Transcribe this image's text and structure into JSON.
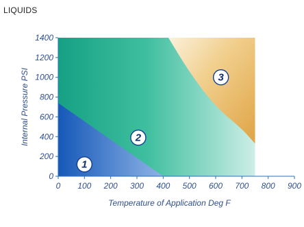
{
  "chart_data": {
    "type": "area",
    "title": "LIQUIDS",
    "xlabel": "Temperature of Application Deg F",
    "ylabel": "Internal Pressure PSI",
    "xlim": [
      0,
      900
    ],
    "ylim": [
      0,
      1400
    ],
    "x_ticks": [
      "0",
      "100",
      "200",
      "300",
      "400",
      "500",
      "600",
      "700",
      "800",
      "900"
    ],
    "y_ticks": [
      "0",
      "200",
      "400",
      "600",
      "800",
      "1000",
      "1200",
      "1400"
    ],
    "plot_xmax": 750,
    "regions": [
      {
        "label": "1",
        "boundary": [
          [
            0,
            740
          ],
          [
            400,
            0
          ]
        ],
        "label_at": [
          100,
          120
        ]
      },
      {
        "label": "2",
        "label_at": [
          305,
          390
        ]
      },
      {
        "label": "3",
        "boundary": [
          [
            420,
            1400
          ],
          [
            500,
            1050
          ],
          [
            600,
            700
          ],
          [
            700,
            480
          ],
          [
            750,
            330
          ]
        ],
        "label_at": [
          620,
          1000
        ]
      }
    ],
    "colors": {
      "region1": "#1e63c0",
      "region2": "#1aa888",
      "region3": "#e8b254",
      "axis": "#2f6fb6",
      "text": "#2f4f8f",
      "label_circle_stroke": "#0f3f8f"
    },
    "grid": false
  }
}
